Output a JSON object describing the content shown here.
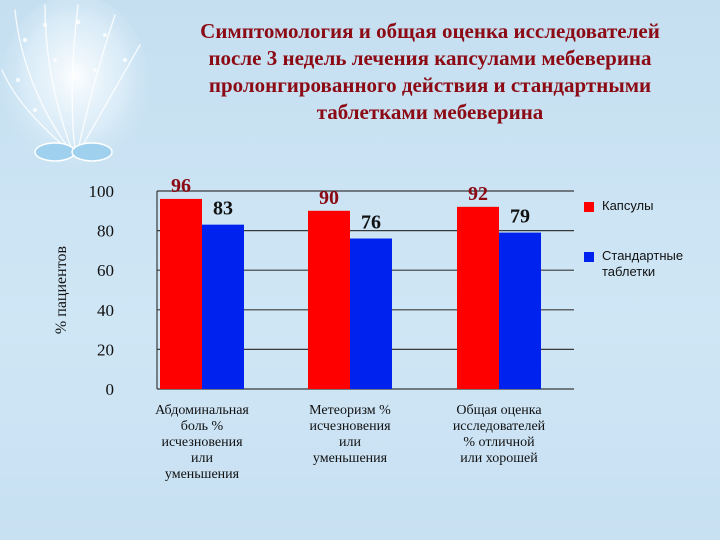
{
  "slide": {
    "title_lines": [
      "Симптомология и общая оценка исследователей",
      "после 3 недель лечения капсулами мебеверина",
      "пролонгированного действия и стандартными",
      "таблетками мебеверина"
    ]
  },
  "colors": {
    "background": "#c9e2f2",
    "title": "#8b0a14",
    "capsules": "#ff0000",
    "tablets": "#0022ee",
    "value_label": "#8b0a14"
  },
  "chart_data": {
    "type": "bar",
    "ylabel": "% пациентов",
    "ylim": [
      0,
      100
    ],
    "yticks": [
      0,
      20,
      40,
      60,
      80,
      100
    ],
    "grid": true,
    "legend_position": "right",
    "categories": [
      [
        "Абдоминальная",
        "боль %",
        "исчезновения",
        "или",
        "уменьшения"
      ],
      [
        "Метеоризм %",
        "исчезновения",
        "или",
        "уменьшения"
      ],
      [
        "Общая оценка",
        "исследователей",
        "% отличной",
        "или хорошей"
      ]
    ],
    "series": [
      {
        "name": "Капсулы",
        "values": [
          96,
          90,
          92
        ]
      },
      {
        "name": "Стандартные таблетки",
        "values": [
          83,
          76,
          79
        ]
      }
    ]
  }
}
